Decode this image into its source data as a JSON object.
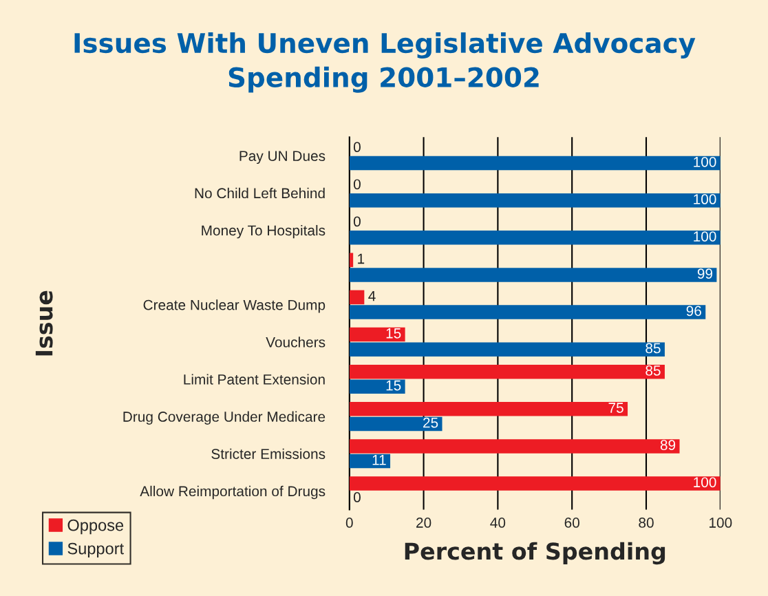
{
  "chart_data": {
    "type": "bar",
    "orientation": "horizontal",
    "title": "Issues With Uneven Legislative Advocacy\nSpending 2001–2002",
    "xlabel": "Percent of Spending",
    "ylabel": "Issue",
    "categories": [
      "Pay UN Dues",
      "No Child Left Behind",
      "Money To Hospitals",
      null,
      "Create Nuclear Waste Dump",
      "Vouchers",
      "Limit Patent Extension",
      "Drug Coverage Under Medicare",
      "Stricter Emissions",
      "Allow Reimportation of Drugs"
    ],
    "series": [
      {
        "name": "Oppose",
        "color": "#ed1c24",
        "values": [
          0,
          0,
          0,
          1,
          4,
          15,
          85,
          75,
          89,
          100
        ]
      },
      {
        "name": "Support",
        "color": "#0060a9",
        "values": [
          100,
          100,
          100,
          99,
          96,
          85,
          15,
          25,
          11,
          0
        ]
      }
    ],
    "xlim": [
      0,
      100
    ],
    "xticks": [
      0,
      20,
      40,
      60,
      80,
      100
    ],
    "grid": "x",
    "legend": "bottom left",
    "data_labels": true
  }
}
